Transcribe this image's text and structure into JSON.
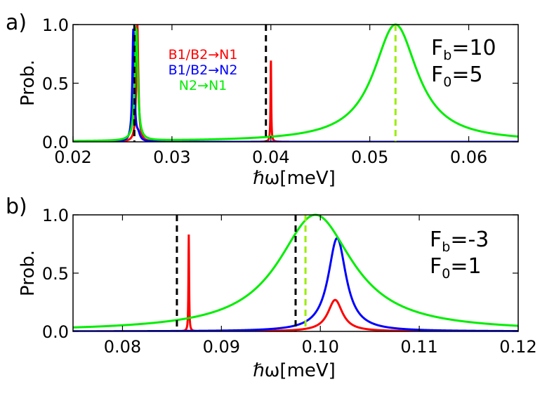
{
  "figure": {
    "legend": [
      {
        "label": "B1/B2→N1",
        "color": "#ff0000"
      },
      {
        "label": "B1/B2→N2",
        "color": "#0000ff"
      },
      {
        "label": "N2→N1",
        "color": "#00ee00"
      }
    ]
  },
  "chart_data": [
    {
      "type": "line",
      "panel_label": "a)",
      "xlabel": "ℏω[meV]",
      "ylabel": "Prob.",
      "xlim": [
        0.02,
        0.065
      ],
      "ylim": [
        0.0,
        1.0
      ],
      "xticks": [
        0.02,
        0.03,
        0.04,
        0.05,
        0.06
      ],
      "xtick_labels": [
        "0.02",
        "0.03",
        "0.04",
        "0.05",
        "0.06"
      ],
      "yticks": [
        0.0,
        0.5,
        1.0
      ],
      "ytick_labels": [
        "0.0",
        "0.5",
        "1.0"
      ],
      "annotations": {
        "fb_main": "F",
        "fb_sub": "b",
        "fb_value": "=10",
        "f0_main": "F",
        "f0_sub": "0",
        "f0_value": "=5"
      },
      "series": [
        {
          "name": "B1/B2→N1",
          "color": "#ff0000",
          "peaks": [
            {
              "center": 0.0265,
              "height": 1.0,
              "width": 0.00012
            },
            {
              "center": 0.04,
              "height": 0.71,
              "width": 4e-05
            }
          ]
        },
        {
          "name": "B1/B2→N2",
          "color": "#0000ff",
          "peaks": [
            {
              "center": 0.0261,
              "height": 0.96,
              "width": 0.00012
            },
            {
              "center": 0.0266,
              "height": 0.05,
              "width": 0.0002
            }
          ]
        },
        {
          "name": "N2→N1",
          "color": "#00ee00",
          "peaks": [
            {
              "center": 0.0526,
              "height": 1.0,
              "width": 0.0027
            },
            {
              "center": 0.0264,
              "height": 0.95,
              "width": 0.00018
            }
          ]
        }
      ],
      "vlines": [
        {
          "x": 0.0262,
          "color": "#000000"
        },
        {
          "x": 0.0395,
          "color": "#000000"
        },
        {
          "x": 0.0526,
          "color": "#99ee00"
        }
      ]
    },
    {
      "type": "line",
      "panel_label": "b)",
      "xlabel": "ℏω[meV]",
      "ylabel": "Prob.",
      "xlim": [
        0.075,
        0.12
      ],
      "ylim": [
        0.0,
        1.0
      ],
      "xticks": [
        0.08,
        0.09,
        0.1,
        0.11,
        0.12
      ],
      "xtick_labels": [
        "0.08",
        "0.09",
        "0.10",
        "0.11",
        "0.12"
      ],
      "yticks": [
        0.0,
        0.5,
        1.0
      ],
      "ytick_labels": [
        "0.0",
        "0.5",
        "1.0"
      ],
      "annotations": {
        "fb_main": "F",
        "fb_sub": "b",
        "fb_value": "=-3",
        "f0_main": "F",
        "f0_sub": "0",
        "f0_value": "=1"
      },
      "series": [
        {
          "name": "B1/B2→N1",
          "color": "#ff0000",
          "peaks": [
            {
              "center": 0.0867,
              "height": 0.83,
              "width": 4e-05
            },
            {
              "center": 0.1015,
              "height": 0.27,
              "width": 0.0009
            }
          ]
        },
        {
          "name": "B1/B2→N2",
          "color": "#0000ff",
          "peaks": [
            {
              "center": 0.1017,
              "height": 0.8,
              "width": 0.0011
            }
          ]
        },
        {
          "name": "N2→N1",
          "color": "#00ee00",
          "peaks": [
            {
              "center": 0.0995,
              "height": 1.0,
              "width": 0.0046
            }
          ]
        }
      ],
      "vlines": [
        {
          "x": 0.0855,
          "color": "#000000"
        },
        {
          "x": 0.0975,
          "color": "#000000"
        },
        {
          "x": 0.0985,
          "color": "#99ee00"
        }
      ]
    }
  ]
}
